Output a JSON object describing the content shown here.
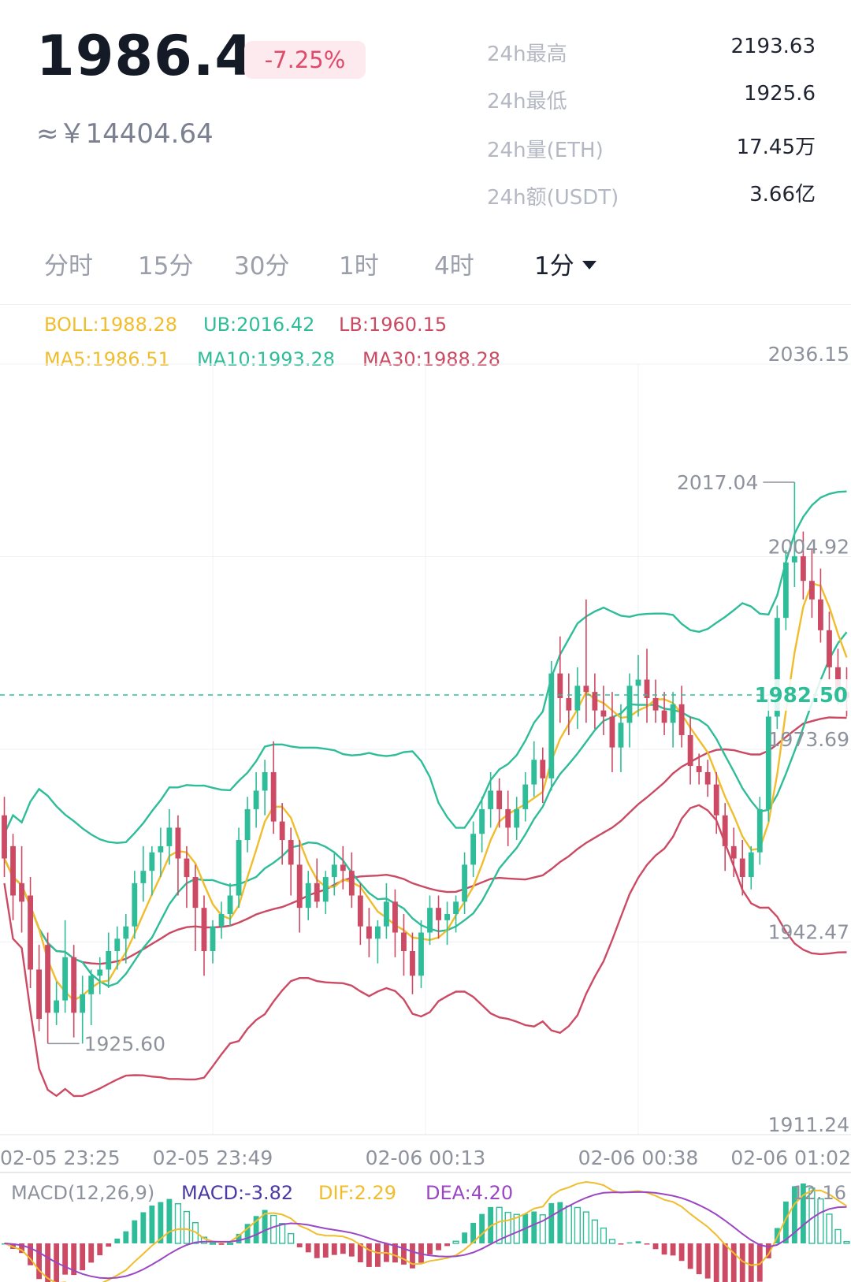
{
  "header": {
    "price": "1986.4",
    "change": "-7.25%",
    "cny_price": "≈￥14404.64",
    "stats": [
      {
        "label": "24h最高",
        "value": "2193.63"
      },
      {
        "label": "24h最低",
        "value": "1925.6"
      },
      {
        "label": "24h量(ETH)",
        "value": "17.45万"
      },
      {
        "label": "24h额(USDT)",
        "value": "3.66亿"
      }
    ]
  },
  "tabs": [
    {
      "label": "分时",
      "active": false
    },
    {
      "label": "15分",
      "active": false
    },
    {
      "label": "30分",
      "active": false
    },
    {
      "label": "1时",
      "active": false
    },
    {
      "label": "4时",
      "active": false
    },
    {
      "label": "1分",
      "active": true
    }
  ],
  "indicators": {
    "boll": "BOLL:1988.28",
    "ub": "UB:2016.42",
    "lb": "LB:1960.15",
    "ma5": "MA5:1986.51",
    "ma10": "MA10:1993.28",
    "ma30": "MA30:1988.28"
  },
  "colors": {
    "up": "#2ebd98",
    "down": "#cc4a63",
    "ma5": "#f0bd2c",
    "ma10": "#2ebd98",
    "ma30": "#c94a62",
    "macd_line": "#4b3aa4",
    "dea": "#9b47c5"
  },
  "chart_data": {
    "type": "candlestick",
    "y_ticks": [
      "2036.15",
      "2004.92",
      "1973.69",
      "1942.47",
      "1911.24"
    ],
    "ylim": [
      1911.24,
      2036.15
    ],
    "x_ticks": [
      "02-05 23:25",
      "02-05 23:49",
      "02-06 00:13",
      "02-06 00:38",
      "02-06 01:02"
    ],
    "current_price": "1982.50",
    "max_marker": "2017.04",
    "min_marker": "1925.60",
    "ohlc": [
      [
        1963,
        1966,
        1953,
        1956
      ],
      [
        1958,
        1960,
        1946,
        1950
      ],
      [
        1952,
        1958,
        1944,
        1949
      ],
      [
        1950,
        1953,
        1935,
        1938
      ],
      [
        1938,
        1942,
        1928,
        1930
      ],
      [
        1942,
        1944,
        1926,
        1931
      ],
      [
        1931,
        1936,
        1929,
        1933
      ],
      [
        1933,
        1946,
        1931,
        1940
      ],
      [
        1940,
        1942,
        1927,
        1931
      ],
      [
        1931,
        1937,
        1926,
        1934
      ],
      [
        1934,
        1938,
        1929,
        1937
      ],
      [
        1937,
        1940,
        1934,
        1938
      ],
      [
        1938,
        1944,
        1935,
        1941
      ],
      [
        1941,
        1945,
        1938,
        1943
      ],
      [
        1943,
        1947,
        1939,
        1945
      ],
      [
        1945,
        1954,
        1943,
        1952
      ],
      [
        1952,
        1958,
        1949,
        1954
      ],
      [
        1954,
        1958,
        1950,
        1957
      ],
      [
        1957,
        1961,
        1953,
        1958
      ],
      [
        1958,
        1964,
        1955,
        1961
      ],
      [
        1961,
        1963,
        1950,
        1956
      ],
      [
        1956,
        1958,
        1948,
        1953
      ],
      [
        1953,
        1955,
        1941,
        1948
      ],
      [
        1948,
        1950,
        1937,
        1941
      ],
      [
        1941,
        1946,
        1939,
        1945
      ],
      [
        1945,
        1949,
        1943,
        1947
      ],
      [
        1947,
        1952,
        1945,
        1950
      ],
      [
        1950,
        1961,
        1948,
        1959
      ],
      [
        1959,
        1966,
        1957,
        1964
      ],
      [
        1964,
        1970,
        1961,
        1967
      ],
      [
        1967,
        1972,
        1963,
        1970
      ],
      [
        1970,
        1975,
        1960,
        1962
      ],
      [
        1962,
        1965,
        1955,
        1959
      ],
      [
        1959,
        1961,
        1950,
        1955
      ],
      [
        1955,
        1959,
        1944,
        1948
      ],
      [
        1948,
        1954,
        1946,
        1952
      ],
      [
        1952,
        1956,
        1948,
        1949
      ],
      [
        1949,
        1954,
        1947,
        1953
      ],
      [
        1953,
        1957,
        1950,
        1955
      ],
      [
        1955,
        1958,
        1951,
        1954
      ],
      [
        1954,
        1957,
        1948,
        1950
      ],
      [
        1950,
        1952,
        1942,
        1945
      ],
      [
        1945,
        1948,
        1940,
        1943
      ],
      [
        1943,
        1946,
        1939,
        1945
      ],
      [
        1945,
        1952,
        1943,
        1949
      ],
      [
        1949,
        1951,
        1940,
        1944
      ],
      [
        1944,
        1947,
        1937,
        1941
      ],
      [
        1941,
        1944,
        1934,
        1937
      ],
      [
        1937,
        1946,
        1935,
        1944
      ],
      [
        1944,
        1950,
        1942,
        1948
      ],
      [
        1948,
        1950,
        1943,
        1946
      ],
      [
        1946,
        1949,
        1942,
        1947
      ],
      [
        1947,
        1950,
        1944,
        1949
      ],
      [
        1949,
        1957,
        1947,
        1955
      ],
      [
        1955,
        1962,
        1953,
        1960
      ],
      [
        1960,
        1966,
        1957,
        1964
      ],
      [
        1964,
        1970,
        1961,
        1967
      ],
      [
        1967,
        1969,
        1961,
        1964
      ],
      [
        1964,
        1967,
        1958,
        1961
      ],
      [
        1961,
        1966,
        1959,
        1964
      ],
      [
        1964,
        1970,
        1962,
        1968
      ],
      [
        1968,
        1975,
        1966,
        1972
      ],
      [
        1972,
        1974,
        1965,
        1969
      ],
      [
        1969,
        1988,
        1967,
        1986
      ],
      [
        1986,
        1992,
        1978,
        1982
      ],
      [
        1982,
        1986,
        1976,
        1980
      ],
      [
        1980,
        1987,
        1977,
        1984
      ],
      [
        1984,
        1998,
        1978,
        1983
      ],
      [
        1983,
        1986,
        1977,
        1980
      ],
      [
        1980,
        1984,
        1976,
        1979
      ],
      [
        1979,
        1983,
        1970,
        1974
      ],
      [
        1974,
        1981,
        1970,
        1978
      ],
      [
        1978,
        1986,
        1974,
        1984
      ],
      [
        1984,
        1989,
        1979,
        1985
      ],
      [
        1985,
        1990,
        1978,
        1982
      ],
      [
        1982,
        1985,
        1978,
        1980
      ],
      [
        1980,
        1983,
        1976,
        1978
      ],
      [
        1978,
        1983,
        1974,
        1981
      ],
      [
        1981,
        1984,
        1974,
        1976
      ],
      [
        1976,
        1979,
        1968,
        1971
      ],
      [
        1971,
        1973,
        1968,
        1970
      ],
      [
        1970,
        1972,
        1966,
        1968
      ],
      [
        1968,
        1970,
        1960,
        1963
      ],
      [
        1963,
        1965,
        1954,
        1958
      ],
      [
        1958,
        1961,
        1953,
        1956
      ],
      [
        1956,
        1959,
        1950,
        1953
      ],
      [
        1953,
        1958,
        1951,
        1957
      ],
      [
        1957,
        1966,
        1955,
        1964
      ],
      [
        1964,
        1982,
        1962,
        1979
      ],
      [
        1979,
        1997,
        1977,
        1995
      ],
      [
        1995,
        2006,
        1993,
        2004
      ],
      [
        2004,
        2017,
        2000,
        2005
      ],
      [
        2005,
        2009,
        1998,
        2001
      ],
      [
        2001,
        2006,
        1995,
        1998
      ],
      [
        1998,
        2003,
        1991,
        1993
      ],
      [
        1993,
        1996,
        1985,
        1987
      ],
      [
        1987,
        1990,
        1981,
        1983
      ],
      [
        1983,
        1987,
        1979,
        1982
      ]
    ],
    "macd": {
      "scale_label": "12.16",
      "title": "MACD(12,26,9)",
      "macd_label": "MACD:-3.82",
      "dif_label": "DIF:2.29",
      "dea_label": "DEA:4.20"
    }
  }
}
